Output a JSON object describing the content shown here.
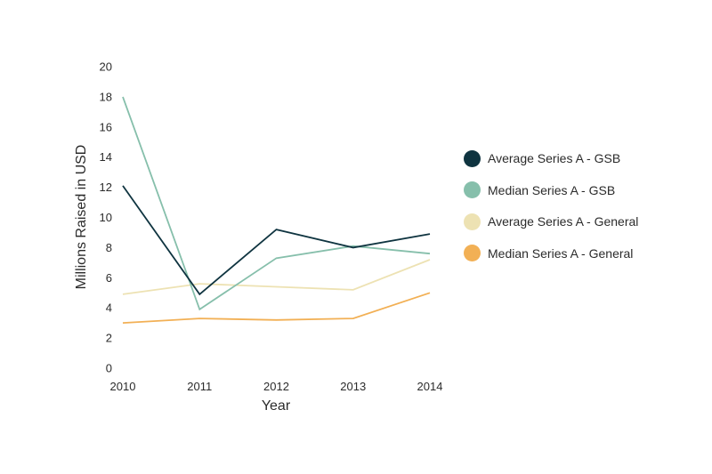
{
  "chart_data": {
    "type": "line",
    "title": "",
    "xlabel": "Year",
    "ylabel": "Millions Raised in USD",
    "categories": [
      "2010",
      "2011",
      "2012",
      "2013",
      "2014"
    ],
    "yticks": [
      "0",
      "2",
      "4",
      "6",
      "8",
      "10",
      "12",
      "14",
      "16",
      "18",
      "20"
    ],
    "ylim": [
      0,
      20
    ],
    "grid": false,
    "legend_position": "right",
    "series": [
      {
        "name": "Average Series A - GSB",
        "color": "#0f3440",
        "values": [
          12.1,
          4.9,
          9.2,
          8.0,
          8.9
        ]
      },
      {
        "name": "Median Series A - GSB",
        "color": "#86bfab",
        "values": [
          18.0,
          3.9,
          7.3,
          8.1,
          7.6
        ]
      },
      {
        "name": "Average Series A - General",
        "color": "#ede2b3",
        "values": [
          4.9,
          5.6,
          5.4,
          5.2,
          7.2
        ]
      },
      {
        "name": "Median Series A - General",
        "color": "#f2b055",
        "values": [
          3.0,
          3.3,
          3.2,
          3.3,
          5.0
        ]
      }
    ]
  }
}
